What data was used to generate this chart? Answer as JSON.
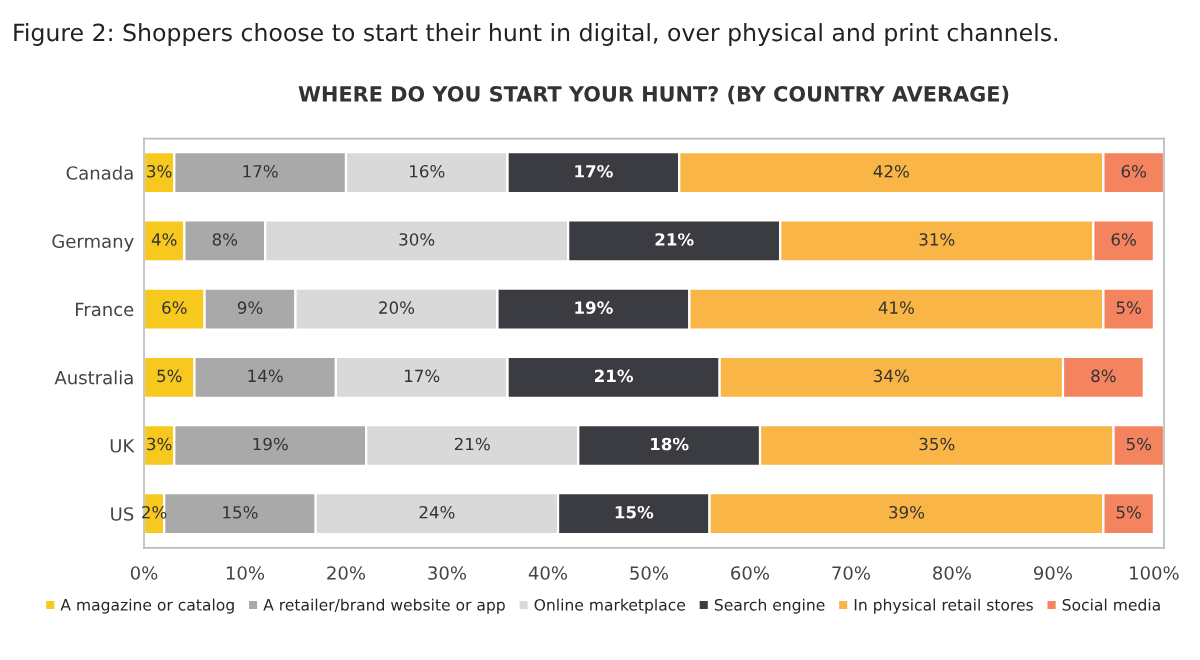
{
  "chart_data": {
    "type": "bar",
    "orientation": "horizontal",
    "stacked": true,
    "title": "Figure 2: Shoppers choose to start their hunt in digital, over physical and print channels.",
    "subtitle": "WHERE DO YOU START YOUR HUNT? (BY COUNTRY AVERAGE)",
    "categories": [
      "Canada",
      "Germany",
      "France",
      "Australia",
      "UK",
      "US"
    ],
    "series": [
      {
        "name": "A magazine or catalog",
        "color": "#f7c81e",
        "values": [
          3,
          4,
          6,
          5,
          3,
          2
        ],
        "value_labels": [
          "3%",
          "4%",
          "6%",
          "5%",
          "3%",
          "2%"
        ]
      },
      {
        "name": "A retailer/brand website or app",
        "color": "#a9a9a9",
        "values": [
          17,
          8,
          9,
          14,
          19,
          15
        ],
        "value_labels": [
          "17%",
          "8%",
          "9%",
          "14%",
          "19%",
          "15%"
        ]
      },
      {
        "name": "Online marketplace",
        "color": "#d9d9d9",
        "values": [
          16,
          30,
          20,
          17,
          21,
          24
        ],
        "value_labels": [
          "16%",
          "30%",
          "20%",
          "17%",
          "21%",
          "24%"
        ]
      },
      {
        "name": "Search engine",
        "color": "#3b3b42",
        "values": [
          17,
          21,
          19,
          21,
          18,
          15
        ],
        "value_labels": [
          "17%",
          "21%",
          "19%",
          "21%",
          "18%",
          "15%"
        ]
      },
      {
        "name": "In physical retail stores",
        "color": "#f9b545",
        "values": [
          42,
          31,
          41,
          34,
          35,
          39
        ],
        "value_labels": [
          "42%",
          "31%",
          "41%",
          "34%",
          "35%",
          "39%"
        ]
      },
      {
        "name": "Social media",
        "color": "#f4845f",
        "values": [
          6,
          6,
          5,
          8,
          5,
          5
        ],
        "value_labels": [
          "6%",
          "6%",
          "5%",
          "8%",
          "5%",
          "5%"
        ]
      }
    ],
    "xlim": [
      0,
      101
    ],
    "xticks": [
      {
        "value": 0,
        "label": "0%"
      },
      {
        "value": 10,
        "label": "10%"
      },
      {
        "value": 20,
        "label": "20%"
      },
      {
        "value": 30,
        "label": "30%"
      },
      {
        "value": 40,
        "label": "40%"
      },
      {
        "value": 50,
        "label": "50%"
      },
      {
        "value": 60,
        "label": "60%"
      },
      {
        "value": 70,
        "label": "70%"
      },
      {
        "value": 80,
        "label": "80%"
      },
      {
        "value": 90,
        "label": "90%"
      },
      {
        "value": 100,
        "label": "100%"
      }
    ],
    "legend": "bottom",
    "grid": false
  }
}
